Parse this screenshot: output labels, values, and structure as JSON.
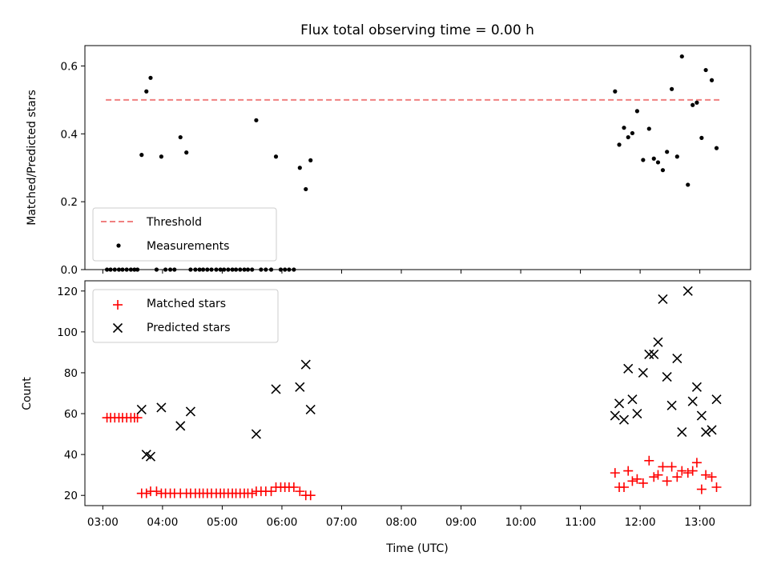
{
  "chart_data": [
    {
      "type": "scatter",
      "title": "Flux total observing time = 0.00 h",
      "xlabel": "",
      "ylabel": "Matched/Predicted stars",
      "ylim": [
        0,
        0.66
      ],
      "yticks": [
        0.0,
        0.2,
        0.4,
        0.6
      ],
      "ytick_labels": [
        "0.0",
        "0.2",
        "0.4",
        "0.6"
      ],
      "xlim": [
        2.7,
        13.85
      ],
      "legend": {
        "placement": "lower-left",
        "entries": [
          "Threshold",
          "Measurements"
        ]
      },
      "threshold": {
        "name": "Threshold",
        "y": 0.5,
        "x": [
          3.05,
          13.35
        ],
        "color": "#f08080"
      },
      "series": [
        {
          "name": "Measurements",
          "color": "#000000",
          "x": [
            3.07,
            3.13,
            3.2,
            3.27,
            3.33,
            3.4,
            3.47,
            3.53,
            3.58,
            3.65,
            3.73,
            3.8,
            3.9,
            3.98,
            4.05,
            4.13,
            4.2,
            4.3,
            4.4,
            4.47,
            4.55,
            4.62,
            4.68,
            4.75,
            4.82,
            4.9,
            4.97,
            5.03,
            5.1,
            5.17,
            5.23,
            5.3,
            5.37,
            5.43,
            5.5,
            5.57,
            5.65,
            5.73,
            5.82,
            5.9,
            5.98,
            6.05,
            6.12,
            6.2,
            6.3,
            6.4,
            6.48,
            11.58,
            11.65,
            11.73,
            11.8,
            11.87,
            11.95,
            12.05,
            12.15,
            12.23,
            12.3,
            12.38,
            12.45,
            12.53,
            12.62,
            12.7,
            12.8,
            12.88,
            12.95,
            13.03,
            13.1,
            13.2,
            13.28
          ],
          "y": [
            0,
            0,
            0,
            0,
            0,
            0,
            0,
            0,
            0,
            0.338,
            0.525,
            0.565,
            0,
            0.333,
            0,
            0,
            0,
            0.39,
            0.345,
            0,
            0,
            0,
            0,
            0,
            0,
            0,
            0,
            0,
            0,
            0,
            0,
            0,
            0,
            0,
            0,
            0.44,
            0,
            0,
            0,
            0.333,
            0,
            0,
            0,
            0,
            0.3,
            0.237,
            0.322,
            0.525,
            0.368,
            0.418,
            0.39,
            0.402,
            0.467,
            0.323,
            0.415,
            0.327,
            0.316,
            0.293,
            0.347,
            0.532,
            0.333,
            0.628,
            0.25,
            0.485,
            0.492,
            0.388,
            0.588,
            0.558,
            0.358
          ]
        }
      ]
    },
    {
      "type": "scatter",
      "title": "",
      "xlabel": "Time (UTC)",
      "ylabel": "Count",
      "ylim": [
        15,
        125
      ],
      "yticks": [
        20,
        40,
        60,
        80,
        100,
        120
      ],
      "ytick_labels": [
        "20",
        "40",
        "60",
        "80",
        "100",
        "120"
      ],
      "xlim": [
        2.7,
        13.85
      ],
      "xticks": [
        3,
        4,
        5,
        6,
        7,
        8,
        9,
        10,
        11,
        12,
        13
      ],
      "xtick_labels": [
        "03:00",
        "04:00",
        "05:00",
        "06:00",
        "07:00",
        "08:00",
        "09:00",
        "10:00",
        "11:00",
        "12:00",
        "13:00"
      ],
      "legend": {
        "placement": "top-left",
        "entries": [
          "Matched stars",
          "Predicted stars"
        ]
      },
      "series": [
        {
          "name": "Matched stars",
          "color": "#ff0000",
          "marker": "plus",
          "x": [
            3.07,
            3.13,
            3.2,
            3.27,
            3.33,
            3.4,
            3.47,
            3.53,
            3.58,
            3.65,
            3.73,
            3.8,
            3.9,
            3.98,
            4.05,
            4.13,
            4.2,
            4.3,
            4.4,
            4.47,
            4.55,
            4.62,
            4.68,
            4.75,
            4.82,
            4.9,
            4.97,
            5.03,
            5.1,
            5.17,
            5.23,
            5.3,
            5.37,
            5.43,
            5.5,
            5.57,
            5.65,
            5.73,
            5.82,
            5.9,
            5.98,
            6.05,
            6.12,
            6.2,
            6.3,
            6.4,
            6.48,
            11.58,
            11.65,
            11.73,
            11.8,
            11.87,
            11.95,
            12.05,
            12.15,
            12.23,
            12.3,
            12.38,
            12.45,
            12.53,
            12.62,
            12.7,
            12.8,
            12.88,
            12.95,
            13.03,
            13.1,
            13.2,
            13.28
          ],
          "y": [
            58,
            58,
            58,
            58,
            58,
            58,
            58,
            58,
            58,
            21,
            21,
            22,
            22,
            21,
            21,
            21,
            21,
            21,
            21,
            21,
            21,
            21,
            21,
            21,
            21,
            21,
            21,
            21,
            21,
            21,
            21,
            21,
            21,
            21,
            21,
            22,
            22,
            22,
            22,
            24,
            24,
            24,
            24,
            24,
            22,
            20,
            20,
            31,
            24,
            24,
            32,
            27,
            28,
            26,
            37,
            29,
            30,
            34,
            27,
            34,
            29,
            32,
            31,
            32,
            36,
            23,
            30,
            29,
            24
          ]
        },
        {
          "name": "Predicted stars",
          "color": "#000000",
          "marker": "x",
          "x": [
            3.65,
            3.73,
            3.8,
            3.98,
            4.3,
            4.47,
            5.57,
            5.9,
            6.3,
            6.4,
            6.48,
            11.58,
            11.65,
            11.73,
            11.8,
            11.87,
            11.95,
            12.05,
            12.15,
            12.23,
            12.3,
            12.38,
            12.45,
            12.53,
            12.62,
            12.7,
            12.8,
            12.88,
            12.95,
            13.03,
            13.1,
            13.2,
            13.28
          ],
          "y": [
            62,
            40,
            39,
            63,
            54,
            61,
            50,
            72,
            73,
            84,
            62,
            59,
            65,
            57,
            82,
            67,
            60,
            80,
            89,
            89,
            95,
            116,
            78,
            64,
            87,
            51,
            120,
            66,
            73,
            59,
            51,
            52,
            67
          ]
        }
      ]
    }
  ]
}
